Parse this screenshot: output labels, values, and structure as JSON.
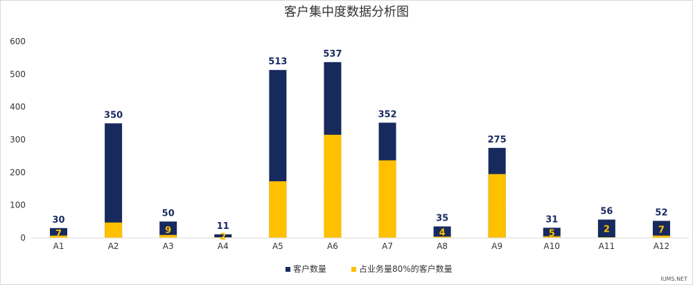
{
  "chart_data": {
    "type": "bar",
    "title": "客户集中度数据分析图",
    "categories": [
      "A1",
      "A2",
      "A3",
      "A4",
      "A5",
      "A6",
      "A7",
      "A8",
      "A9",
      "A10",
      "A11",
      "A12"
    ],
    "series": [
      {
        "name": "客户数量",
        "values": [
          30,
          350,
          50,
          11,
          513,
          537,
          352,
          35,
          275,
          31,
          56,
          52
        ],
        "color": "#172a5e"
      },
      {
        "name": "占业务量80%的客户数量",
        "values": [
          7,
          47,
          9,
          2,
          173,
          315,
          237,
          4,
          195,
          5,
          2,
          7
        ],
        "color": "#ffc000"
      }
    ],
    "ylim": [
      0,
      600
    ],
    "y_ticks": [
      0,
      100,
      200,
      300,
      400,
      500,
      600
    ],
    "xlabel": "",
    "ylabel": "",
    "grid": false,
    "legend_position": "bottom",
    "overlap": true
  },
  "watermark": "IUMS.NET"
}
